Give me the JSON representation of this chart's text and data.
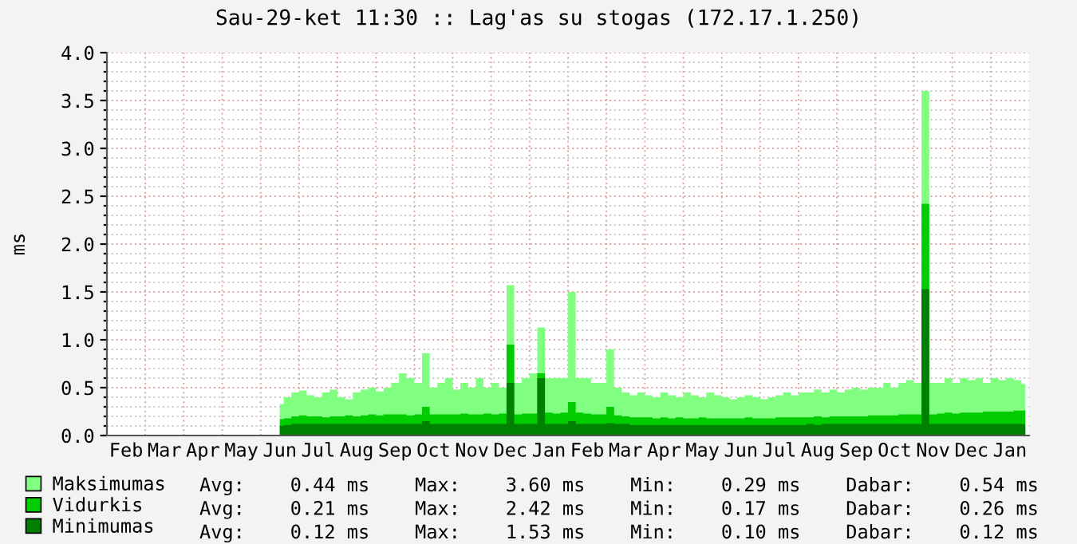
{
  "chart_data": {
    "type": "area",
    "title": "Sau-29-ket 11:30 :: Lag'as su stogas (172.17.1.250)",
    "ylabel": "ms",
    "categories": [
      null,
      null,
      "Feb",
      null,
      null,
      null,
      null,
      "Mar",
      null,
      null,
      null,
      null,
      "Apr",
      null,
      null,
      null,
      null,
      "May",
      null,
      null,
      null,
      null,
      "Jun",
      null,
      null,
      null,
      null,
      "Jul",
      null,
      null,
      null,
      null,
      "Aug",
      null,
      null,
      null,
      null,
      "Sep",
      null,
      null,
      null,
      null,
      "Oct",
      null,
      null,
      null,
      null,
      "Nov",
      null,
      null,
      null,
      null,
      "Dec",
      null,
      null,
      null,
      null,
      "Jan",
      null,
      null,
      null,
      null,
      "Feb",
      null,
      null,
      null,
      null,
      "Mar",
      null,
      null,
      null,
      null,
      "Apr",
      null,
      null,
      null,
      null,
      "May",
      null,
      null,
      null,
      null,
      "Jun",
      null,
      null,
      null,
      null,
      "Jul",
      null,
      null,
      null,
      null,
      "Aug",
      null,
      null,
      null,
      null,
      "Sep",
      null,
      null,
      null,
      null,
      "Oct",
      null,
      null,
      null,
      null,
      "Nov",
      null,
      null,
      null,
      null,
      "Dec",
      null,
      null,
      null,
      null,
      "Jan",
      null,
      null
    ],
    "series": [
      {
        "name": "Maksimumas",
        "color": "#80ff80",
        "values": [
          null,
          null,
          null,
          null,
          null,
          null,
          null,
          null,
          null,
          null,
          null,
          null,
          null,
          null,
          null,
          null,
          null,
          null,
          null,
          null,
          null,
          null,
          0.33,
          0.4,
          0.45,
          0.47,
          0.42,
          0.4,
          0.45,
          0.48,
          0.4,
          0.38,
          0.45,
          0.48,
          0.5,
          0.46,
          0.5,
          0.55,
          0.65,
          0.6,
          0.55,
          0.86,
          0.5,
          0.55,
          0.6,
          0.48,
          0.55,
          0.5,
          0.6,
          0.5,
          0.55,
          0.5,
          1.57,
          0.55,
          0.6,
          0.65,
          1.13,
          0.6,
          0.6,
          0.6,
          1.5,
          0.6,
          0.6,
          0.55,
          0.55,
          0.9,
          0.5,
          0.45,
          0.42,
          0.45,
          0.42,
          0.4,
          0.45,
          0.42,
          0.4,
          0.45,
          0.42,
          0.4,
          0.45,
          0.42,
          0.4,
          0.38,
          0.4,
          0.42,
          0.4,
          0.38,
          0.4,
          0.42,
          0.45,
          0.42,
          0.45,
          0.45,
          0.48,
          0.45,
          0.48,
          0.45,
          0.48,
          0.5,
          0.48,
          0.5,
          0.5,
          0.55,
          0.5,
          0.55,
          0.58,
          0.55,
          3.6,
          0.55,
          0.55,
          0.6,
          0.55,
          0.6,
          0.58,
          0.6,
          0.55,
          0.6,
          0.58,
          0.6,
          0.58,
          0.54
        ]
      },
      {
        "name": "Vidurkis",
        "color": "#00cc00",
        "values": [
          null,
          null,
          null,
          null,
          null,
          null,
          null,
          null,
          null,
          null,
          null,
          null,
          null,
          null,
          null,
          null,
          null,
          null,
          null,
          null,
          null,
          null,
          0.17,
          0.18,
          0.2,
          0.21,
          0.2,
          0.2,
          0.19,
          0.2,
          0.2,
          0.21,
          0.2,
          0.21,
          0.22,
          0.21,
          0.22,
          0.22,
          0.22,
          0.21,
          0.22,
          0.3,
          0.22,
          0.22,
          0.22,
          0.22,
          0.23,
          0.22,
          0.22,
          0.23,
          0.22,
          0.23,
          0.95,
          0.22,
          0.23,
          0.23,
          0.65,
          0.24,
          0.23,
          0.24,
          0.35,
          0.24,
          0.23,
          0.22,
          0.22,
          0.3,
          0.21,
          0.2,
          0.19,
          0.19,
          0.19,
          0.18,
          0.19,
          0.18,
          0.19,
          0.18,
          0.18,
          0.19,
          0.18,
          0.18,
          0.18,
          0.18,
          0.18,
          0.19,
          0.18,
          0.18,
          0.18,
          0.19,
          0.19,
          0.19,
          0.19,
          0.19,
          0.2,
          0.19,
          0.2,
          0.2,
          0.2,
          0.2,
          0.2,
          0.21,
          0.21,
          0.21,
          0.21,
          0.22,
          0.22,
          0.22,
          2.42,
          0.22,
          0.23,
          0.24,
          0.23,
          0.24,
          0.24,
          0.24,
          0.25,
          0.25,
          0.25,
          0.25,
          0.26,
          0.26
        ]
      },
      {
        "name": "Minimumas",
        "color": "#008000",
        "values": [
          null,
          null,
          null,
          null,
          null,
          null,
          null,
          null,
          null,
          null,
          null,
          null,
          null,
          null,
          null,
          null,
          null,
          null,
          null,
          null,
          null,
          null,
          0.1,
          0.11,
          0.12,
          0.12,
          0.12,
          0.12,
          0.12,
          0.12,
          0.12,
          0.12,
          0.12,
          0.12,
          0.12,
          0.12,
          0.12,
          0.12,
          0.12,
          0.12,
          0.12,
          0.15,
          0.12,
          0.12,
          0.12,
          0.12,
          0.12,
          0.12,
          0.12,
          0.12,
          0.12,
          0.12,
          0.55,
          0.12,
          0.12,
          0.12,
          0.6,
          0.12,
          0.12,
          0.12,
          0.15,
          0.12,
          0.12,
          0.12,
          0.12,
          0.13,
          0.12,
          0.12,
          0.11,
          0.11,
          0.11,
          0.11,
          0.11,
          0.11,
          0.11,
          0.11,
          0.11,
          0.11,
          0.11,
          0.11,
          0.11,
          0.11,
          0.11,
          0.11,
          0.11,
          0.11,
          0.11,
          0.11,
          0.11,
          0.11,
          0.11,
          0.12,
          0.11,
          0.12,
          0.12,
          0.12,
          0.12,
          0.12,
          0.12,
          0.12,
          0.12,
          0.12,
          0.12,
          0.12,
          0.12,
          0.12,
          1.53,
          0.12,
          0.12,
          0.12,
          0.12,
          0.12,
          0.12,
          0.12,
          0.12,
          0.12,
          0.12,
          0.12,
          0.12,
          0.12
        ]
      }
    ],
    "ylim": [
      0,
      4.0
    ],
    "yticks": [
      {
        "value": 0,
        "label": "0.0"
      },
      {
        "value": 0.1,
        "label": null
      },
      {
        "value": 0.2,
        "label": null
      },
      {
        "value": 0.3,
        "label": null
      },
      {
        "value": 0.4,
        "label": null
      },
      {
        "value": 0.5,
        "label": "0.5"
      },
      {
        "value": 0.6,
        "label": null
      },
      {
        "value": 0.7,
        "label": null
      },
      {
        "value": 0.8,
        "label": null
      },
      {
        "value": 0.9,
        "label": null
      },
      {
        "value": 1.0,
        "label": "1.0"
      },
      {
        "value": 1.1,
        "label": null
      },
      {
        "value": 1.2,
        "label": null
      },
      {
        "value": 1.3,
        "label": null
      },
      {
        "value": 1.4,
        "label": null
      },
      {
        "value": 1.5,
        "label": "1.5"
      },
      {
        "value": 1.6,
        "label": null
      },
      {
        "value": 1.7,
        "label": null
      },
      {
        "value": 1.8,
        "label": null
      },
      {
        "value": 1.9,
        "label": null
      },
      {
        "value": 2.0,
        "label": "2.0"
      },
      {
        "value": 2.1,
        "label": null
      },
      {
        "value": 2.2,
        "label": null
      },
      {
        "value": 2.3,
        "label": null
      },
      {
        "value": 2.4,
        "label": null
      },
      {
        "value": 2.5,
        "label": "2.5"
      },
      {
        "value": 2.6,
        "label": null
      },
      {
        "value": 2.7,
        "label": null
      },
      {
        "value": 2.8,
        "label": null
      },
      {
        "value": 2.9,
        "label": null
      },
      {
        "value": 3.0,
        "label": "3.0"
      },
      {
        "value": 3.1,
        "label": null
      },
      {
        "value": 3.2,
        "label": null
      },
      {
        "value": 3.3,
        "label": null
      },
      {
        "value": 3.4,
        "label": null
      },
      {
        "value": 3.5,
        "label": "3.5"
      },
      {
        "value": 3.6,
        "label": null
      },
      {
        "value": 3.7,
        "label": null
      },
      {
        "value": 3.8,
        "label": null
      },
      {
        "value": 3.9,
        "label": null
      },
      {
        "value": 4.0,
        "label": "4.0"
      }
    ],
    "grid": true,
    "legend": "bottom",
    "annotations": [
      "Avg:    0.44 ms    Max:    3.60 ms    Min:    0.29 ms    Dabar:    0.54 ms",
      "Avg:    0.21 ms    Max:    2.42 ms    Min:    0.17 ms    Dabar:    0.26 ms",
      "Avg:    0.12 ms    Max:    1.53 ms    Min:    0.10 ms    Dabar:    0.12 ms"
    ]
  }
}
